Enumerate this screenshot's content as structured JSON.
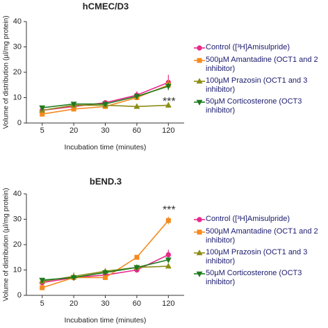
{
  "chart_data": [
    {
      "type": "line",
      "title": "hCMEC/D3",
      "xlabel": "Incubation time (minutes)",
      "ylabel": "Volume of distribution (µl/mg protein)",
      "categories": [
        "5",
        "20",
        "30",
        "60",
        "120"
      ],
      "ylim": [
        0,
        40
      ],
      "yticks": [
        0,
        10,
        20,
        30,
        40
      ],
      "legend": "right",
      "annotation": "***",
      "series": [
        {
          "name": "Control ([³H]Amisulpride)",
          "color": "#e8298a",
          "marker": "circle",
          "values": [
            5,
            6.5,
            8,
            11,
            16
          ],
          "errors": [
            0.8,
            0.7,
            1,
            1.5,
            3
          ]
        },
        {
          "name": "500µM Amantadine (OCT1 and 2 inhibitor)",
          "color": "#f58a1f",
          "marker": "square",
          "values": [
            3.5,
            5.5,
            6.5,
            10,
            15
          ],
          "errors": [
            0.5,
            0.6,
            0.7,
            1,
            2
          ]
        },
        {
          "name": "100µM Prazosin (OCT1 and 3 inhibitor)",
          "color": "#8c8c14",
          "marker": "triangle-up",
          "values": [
            5,
            7,
            7,
            6.5,
            7
          ],
          "errors": [
            0.5,
            0.6,
            0.5,
            0.7,
            1
          ]
        },
        {
          "name": "50µM Corticosterone (OCT3 inhibitor)",
          "color": "#1e7a1e",
          "marker": "triangle-down",
          "values": [
            6,
            7.5,
            7.5,
            10.5,
            14.5
          ],
          "errors": [
            0.5,
            0.6,
            0.6,
            1,
            1.5
          ]
        }
      ]
    },
    {
      "type": "line",
      "title": "bEND.3",
      "xlabel": "Incubation time (minutes)",
      "ylabel": "Volume of distribution (µl/mg protein)",
      "categories": [
        "5",
        "20",
        "30",
        "60",
        "120"
      ],
      "ylim": [
        0,
        40
      ],
      "yticks": [
        0,
        10,
        20,
        30,
        40
      ],
      "legend": "right",
      "annotation": "***",
      "series": [
        {
          "name": "Control ([³H]Amisulpride)",
          "color": "#e8298a",
          "marker": "circle",
          "values": [
            5,
            7,
            8,
            10,
            16
          ],
          "errors": [
            0.6,
            0.8,
            0.8,
            1,
            2
          ]
        },
        {
          "name": "500µM Amantadine (OCT1 and 2 inhibitor)",
          "color": "#f58a1f",
          "marker": "square",
          "values": [
            3,
            7,
            7,
            15,
            29.5
          ],
          "errors": [
            0.5,
            0.6,
            0.6,
            0.8,
            1.5
          ]
        },
        {
          "name": "100µM Prazosin (OCT1 and 3 inhibitor)",
          "color": "#8c8c14",
          "marker": "triangle-up",
          "values": [
            5.5,
            7.5,
            9.5,
            11,
            11.5
          ],
          "errors": [
            0.6,
            1.5,
            0.8,
            0.8,
            0.8
          ]
        },
        {
          "name": "50µM Corticosterone (OCT3 inhibitor)",
          "color": "#1e7a1e",
          "marker": "triangle-down",
          "values": [
            6,
            7,
            9,
            11,
            14
          ],
          "errors": [
            0.5,
            1.2,
            0.8,
            0.8,
            1
          ]
        }
      ]
    }
  ]
}
